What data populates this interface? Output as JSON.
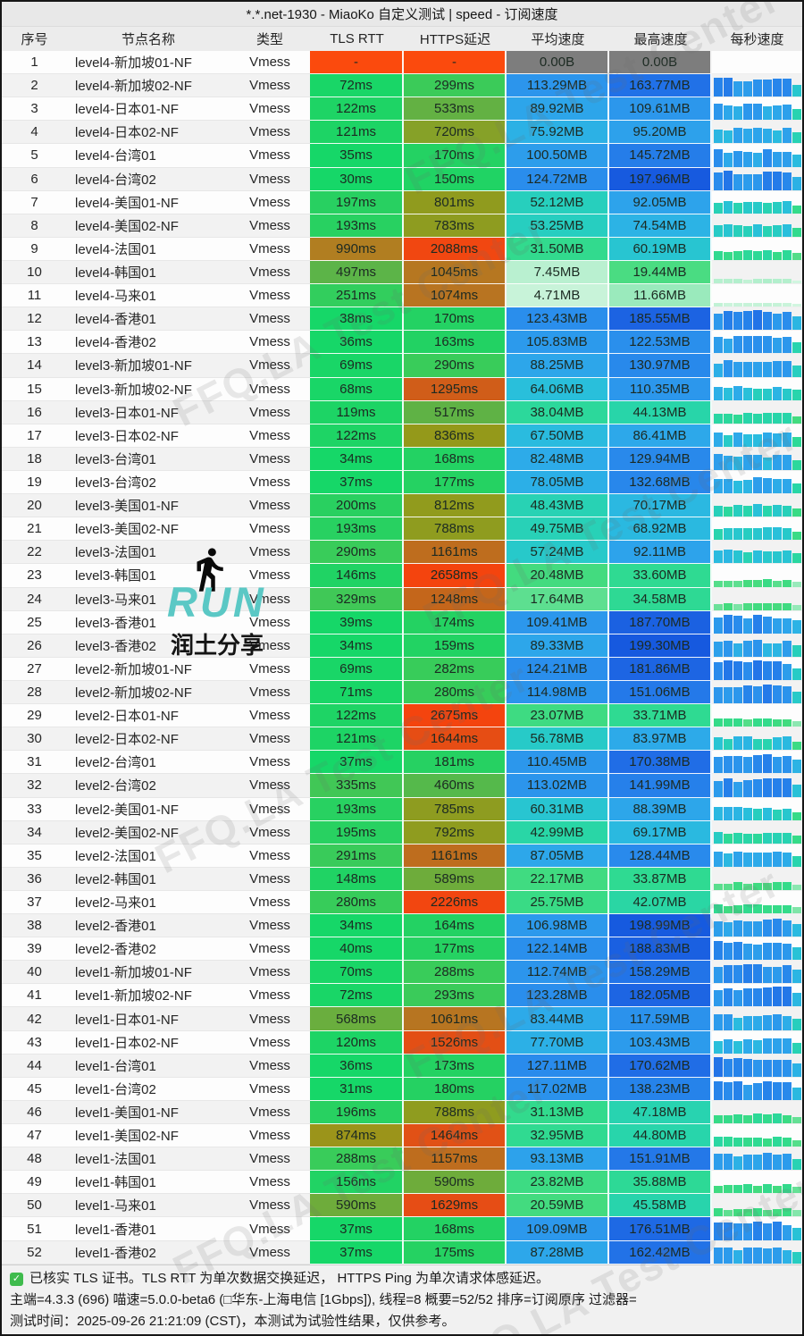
{
  "window": {
    "title": "*.*.net-1930 - MiaoKo 自定义测试 | speed - 订阅速度"
  },
  "table": {
    "columns": [
      "序号",
      "节点名称",
      "类型",
      "TLS RTT",
      "HTTPS延迟",
      "平均速度",
      "最高速度",
      "每秒速度"
    ],
    "row_fields": [
      "index",
      "name",
      "type",
      "tls_rtt_ms",
      "https_latency_ms",
      "avg_speed_mb",
      "max_speed_mb"
    ],
    "rows": [
      [
        1,
        "level4-新加坡01-NF",
        "Vmess",
        null,
        null,
        0,
        0
      ],
      [
        2,
        "level4-新加坡02-NF",
        "Vmess",
        72,
        299,
        113.29,
        163.77
      ],
      [
        3,
        "level4-日本01-NF",
        "Vmess",
        122,
        533,
        89.92,
        109.61
      ],
      [
        4,
        "level4-日本02-NF",
        "Vmess",
        121,
        720,
        75.92,
        95.2
      ],
      [
        5,
        "level4-台湾01",
        "Vmess",
        35,
        170,
        100.5,
        145.72
      ],
      [
        6,
        "level4-台湾02",
        "Vmess",
        30,
        150,
        124.72,
        197.96
      ],
      [
        7,
        "level4-美国01-NF",
        "Vmess",
        197,
        801,
        52.12,
        92.05
      ],
      [
        8,
        "level4-美国02-NF",
        "Vmess",
        193,
        783,
        53.25,
        74.54
      ],
      [
        9,
        "level4-法国01",
        "Vmess",
        990,
        2088,
        31.5,
        60.19
      ],
      [
        10,
        "level4-韩国01",
        "Vmess",
        497,
        1045,
        7.45,
        19.44
      ],
      [
        11,
        "level4-马来01",
        "Vmess",
        251,
        1074,
        4.71,
        11.66
      ],
      [
        12,
        "level4-香港01",
        "Vmess",
        38,
        170,
        123.43,
        185.55
      ],
      [
        13,
        "level4-香港02",
        "Vmess",
        36,
        163,
        105.83,
        122.53
      ],
      [
        14,
        "level3-新加坡01-NF",
        "Vmess",
        69,
        290,
        88.25,
        130.97
      ],
      [
        15,
        "level3-新加坡02-NF",
        "Vmess",
        68,
        1295,
        64.06,
        110.35
      ],
      [
        16,
        "level3-日本01-NF",
        "Vmess",
        119,
        517,
        38.04,
        44.13
      ],
      [
        17,
        "level3-日本02-NF",
        "Vmess",
        122,
        836,
        67.5,
        86.41
      ],
      [
        18,
        "level3-台湾01",
        "Vmess",
        34,
        168,
        82.48,
        129.94
      ],
      [
        19,
        "level3-台湾02",
        "Vmess",
        37,
        177,
        78.05,
        132.68
      ],
      [
        20,
        "level3-美国01-NF",
        "Vmess",
        200,
        812,
        48.43,
        70.17
      ],
      [
        21,
        "level3-美国02-NF",
        "Vmess",
        193,
        788,
        49.75,
        68.92
      ],
      [
        22,
        "level3-法国01",
        "Vmess",
        290,
        1161,
        57.24,
        92.11
      ],
      [
        23,
        "level3-韩国01",
        "Vmess",
        146,
        2658,
        20.48,
        33.6
      ],
      [
        24,
        "level3-马来01",
        "Vmess",
        329,
        1248,
        17.64,
        34.58
      ],
      [
        25,
        "level3-香港01",
        "Vmess",
        39,
        174,
        109.41,
        187.7
      ],
      [
        26,
        "level3-香港02",
        "Vmess",
        34,
        159,
        89.33,
        199.3
      ],
      [
        27,
        "level2-新加坡01-NF",
        "Vmess",
        69,
        282,
        124.21,
        181.86
      ],
      [
        28,
        "level2-新加坡02-NF",
        "Vmess",
        71,
        280,
        114.98,
        151.06
      ],
      [
        29,
        "level2-日本01-NF",
        "Vmess",
        122,
        2675,
        23.07,
        33.71
      ],
      [
        30,
        "level2-日本02-NF",
        "Vmess",
        121,
        1644,
        56.78,
        83.97
      ],
      [
        31,
        "level2-台湾01",
        "Vmess",
        37,
        181,
        110.45,
        170.38
      ],
      [
        32,
        "level2-台湾02",
        "Vmess",
        335,
        460,
        113.02,
        141.99
      ],
      [
        33,
        "level2-美国01-NF",
        "Vmess",
        193,
        785,
        60.31,
        88.39
      ],
      [
        34,
        "level2-美国02-NF",
        "Vmess",
        195,
        792,
        42.99,
        69.17
      ],
      [
        35,
        "level2-法国01",
        "Vmess",
        291,
        1161,
        87.05,
        128.44
      ],
      [
        36,
        "level2-韩国01",
        "Vmess",
        148,
        589,
        22.17,
        33.87
      ],
      [
        37,
        "level2-马来01",
        "Vmess",
        280,
        2226,
        25.75,
        42.07
      ],
      [
        38,
        "level2-香港01",
        "Vmess",
        34,
        164,
        106.98,
        198.99
      ],
      [
        39,
        "level2-香港02",
        "Vmess",
        40,
        177,
        122.14,
        188.83
      ],
      [
        40,
        "level1-新加坡01-NF",
        "Vmess",
        70,
        288,
        112.74,
        158.29
      ],
      [
        41,
        "level1-新加坡02-NF",
        "Vmess",
        72,
        293,
        123.28,
        182.05
      ],
      [
        42,
        "level1-日本01-NF",
        "Vmess",
        568,
        1061,
        83.44,
        117.59
      ],
      [
        43,
        "level1-日本02-NF",
        "Vmess",
        120,
        1526,
        77.7,
        103.43
      ],
      [
        44,
        "level1-台湾01",
        "Vmess",
        36,
        173,
        127.11,
        170.62
      ],
      [
        45,
        "level1-台湾02",
        "Vmess",
        31,
        180,
        117.02,
        138.23
      ],
      [
        46,
        "level1-美国01-NF",
        "Vmess",
        196,
        788,
        31.13,
        47.18
      ],
      [
        47,
        "level1-美国02-NF",
        "Vmess",
        874,
        1464,
        32.95,
        44.8
      ],
      [
        48,
        "level1-法国01",
        "Vmess",
        288,
        1157,
        93.13,
        151.91
      ],
      [
        49,
        "level1-韩国01",
        "Vmess",
        156,
        590,
        23.82,
        35.88
      ],
      [
        50,
        "level1-马来01",
        "Vmess",
        590,
        1629,
        20.59,
        45.58
      ],
      [
        51,
        "level1-香港01",
        "Vmess",
        37,
        168,
        109.09,
        176.51
      ],
      [
        52,
        "level1-香港02",
        "Vmess",
        37,
        175,
        87.28,
        162.42
      ]
    ]
  },
  "units": {
    "ping": "ms",
    "speed": "MB",
    "zero_speed": "0.00B",
    "missing": "-"
  },
  "footer": {
    "line1": "已核实 TLS 证书。TLS RTT 为单次数据交换延迟， HTTPS Ping 为单次请求体感延迟。",
    "line2": "主端=4.3.3 (696) 喵速=5.0.0-beta6 (□华东-上海电信 [1Gbps]), 线程=8 概要=52/52 排序=订阅原序 过滤器=",
    "line3": "测试时间：2025-09-26 21:21:09 (CST)，本测试为试验性结果，仅供参考。"
  },
  "watermark_text": "FFQ.LA Test Center",
  "logo": {
    "title": "RUN",
    "subtitle": "润土分享"
  },
  "colors": {
    "fail_cell": "#fb4a0d",
    "zero_speed_cell": "#7d7d7d",
    "titlebar_bg": "#e8e8e8",
    "header_bg": "#ececec",
    "footer_bg": "#f1f1f1",
    "check_green": "#3fbb4d",
    "logo_teal": "#5bc8c5",
    "ping_scale": [
      [
        0,
        "#13d869"
      ],
      [
        150,
        "#20d364"
      ],
      [
        300,
        "#3bcb59"
      ],
      [
        500,
        "#5cb448"
      ],
      [
        700,
        "#84a22a"
      ],
      [
        850,
        "#969818"
      ],
      [
        1000,
        "#b37c22"
      ],
      [
        1100,
        "#ba7120"
      ],
      [
        1250,
        "#c4661b"
      ],
      [
        1350,
        "#de5317"
      ],
      [
        1700,
        "#e84c14"
      ],
      [
        2100,
        "#f14711"
      ],
      [
        2700,
        "#f4440e"
      ]
    ],
    "speed_scale": [
      [
        0,
        "#e9fbf1"
      ],
      [
        5,
        "#c6f3d8"
      ],
      [
        10,
        "#abedc8"
      ],
      [
        16,
        "#6fe29c"
      ],
      [
        20,
        "#44db7e"
      ],
      [
        28,
        "#35db88"
      ],
      [
        36,
        "#2dd996"
      ],
      [
        45,
        "#28d5ab"
      ],
      [
        55,
        "#27ccc4"
      ],
      [
        65,
        "#29bedd"
      ],
      [
        75,
        "#2cb2e5"
      ],
      [
        85,
        "#2da9ea"
      ],
      [
        95,
        "#2da1eb"
      ],
      [
        110,
        "#2c97ec"
      ],
      [
        125,
        "#2a8dec"
      ],
      [
        140,
        "#2682ea"
      ],
      [
        155,
        "#2376e8"
      ],
      [
        170,
        "#206de6"
      ],
      [
        185,
        "#1c63e2"
      ],
      [
        200,
        "#1659df"
      ]
    ]
  }
}
